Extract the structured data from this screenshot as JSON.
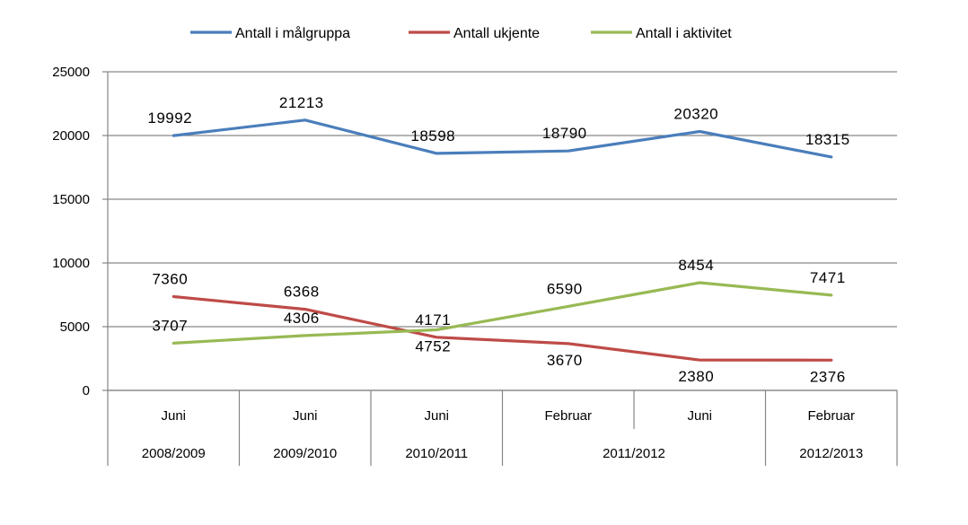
{
  "chart_data": {
    "type": "line",
    "title": "",
    "xlabel": "",
    "ylabel": "",
    "ylim": [
      0,
      25000
    ],
    "yticks": [
      0,
      5000,
      10000,
      15000,
      20000,
      25000
    ],
    "grid": true,
    "legend_position": "top",
    "categories": [
      "Juni",
      "Juni",
      "Juni",
      "Februar",
      "Juni",
      "Februar"
    ],
    "category_groups": [
      {
        "label": "2008/2009",
        "span": 1
      },
      {
        "label": "2009/2010",
        "span": 1
      },
      {
        "label": "2010/2011",
        "span": 1
      },
      {
        "label": "2011/2012",
        "span": 2
      },
      {
        "label": "2012/2013",
        "span": 1
      }
    ],
    "series": [
      {
        "name": "Antall i målgruppa",
        "color": "#4a7ebb",
        "values": [
          19992,
          21213,
          18598,
          18790,
          20320,
          18315
        ]
      },
      {
        "name": "Antall ukjente",
        "color": "#be4b48",
        "values": [
          7360,
          6368,
          4171,
          3670,
          2380,
          2376
        ]
      },
      {
        "name": "Antall i aktivitet",
        "color": "#98b954",
        "values": [
          3707,
          4306,
          4752,
          6590,
          8454,
          7471
        ]
      }
    ]
  }
}
